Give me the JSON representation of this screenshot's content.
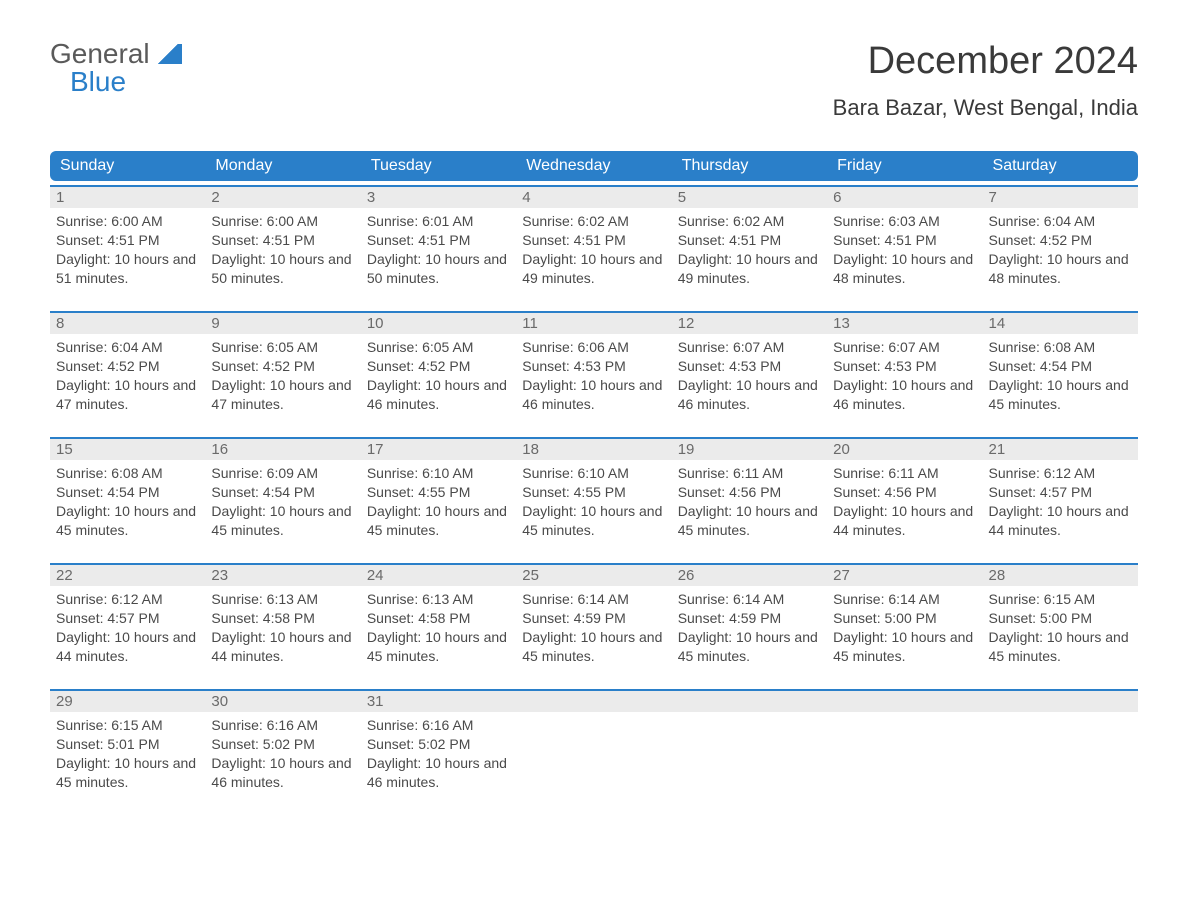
{
  "logo": {
    "top": "General",
    "bottom": "Blue"
  },
  "title": "December 2024",
  "location": "Bara Bazar, West Bengal, India",
  "colors": {
    "brand_blue": "#2a7fc9",
    "header_text": "#ffffff",
    "daynum_bg": "#ebebeb",
    "daynum_text": "#6a6a6a",
    "body_text": "#4a4a4a",
    "title_text": "#3a3a3a",
    "background": "#ffffff"
  },
  "typography": {
    "title_fontsize": 38,
    "location_fontsize": 22,
    "dayheader_fontsize": 16,
    "daynum_fontsize": 15,
    "cell_fontsize": 14,
    "logo_fontsize": 28,
    "font_family": "Arial"
  },
  "layout": {
    "columns": 7,
    "rows": 5,
    "header_radius": 6,
    "week_border_top": "2px solid #2a7fc9"
  },
  "day_headers": [
    "Sunday",
    "Monday",
    "Tuesday",
    "Wednesday",
    "Thursday",
    "Friday",
    "Saturday"
  ],
  "labels": {
    "sunrise": "Sunrise:",
    "sunset": "Sunset:",
    "daylight": "Daylight:"
  },
  "weeks": [
    [
      {
        "num": "1",
        "sunrise": "6:00 AM",
        "sunset": "4:51 PM",
        "daylight": "10 hours and 51 minutes."
      },
      {
        "num": "2",
        "sunrise": "6:00 AM",
        "sunset": "4:51 PM",
        "daylight": "10 hours and 50 minutes."
      },
      {
        "num": "3",
        "sunrise": "6:01 AM",
        "sunset": "4:51 PM",
        "daylight": "10 hours and 50 minutes."
      },
      {
        "num": "4",
        "sunrise": "6:02 AM",
        "sunset": "4:51 PM",
        "daylight": "10 hours and 49 minutes."
      },
      {
        "num": "5",
        "sunrise": "6:02 AM",
        "sunset": "4:51 PM",
        "daylight": "10 hours and 49 minutes."
      },
      {
        "num": "6",
        "sunrise": "6:03 AM",
        "sunset": "4:51 PM",
        "daylight": "10 hours and 48 minutes."
      },
      {
        "num": "7",
        "sunrise": "6:04 AM",
        "sunset": "4:52 PM",
        "daylight": "10 hours and 48 minutes."
      }
    ],
    [
      {
        "num": "8",
        "sunrise": "6:04 AM",
        "sunset": "4:52 PM",
        "daylight": "10 hours and 47 minutes."
      },
      {
        "num": "9",
        "sunrise": "6:05 AM",
        "sunset": "4:52 PM",
        "daylight": "10 hours and 47 minutes."
      },
      {
        "num": "10",
        "sunrise": "6:05 AM",
        "sunset": "4:52 PM",
        "daylight": "10 hours and 46 minutes."
      },
      {
        "num": "11",
        "sunrise": "6:06 AM",
        "sunset": "4:53 PM",
        "daylight": "10 hours and 46 minutes."
      },
      {
        "num": "12",
        "sunrise": "6:07 AM",
        "sunset": "4:53 PM",
        "daylight": "10 hours and 46 minutes."
      },
      {
        "num": "13",
        "sunrise": "6:07 AM",
        "sunset": "4:53 PM",
        "daylight": "10 hours and 46 minutes."
      },
      {
        "num": "14",
        "sunrise": "6:08 AM",
        "sunset": "4:54 PM",
        "daylight": "10 hours and 45 minutes."
      }
    ],
    [
      {
        "num": "15",
        "sunrise": "6:08 AM",
        "sunset": "4:54 PM",
        "daylight": "10 hours and 45 minutes."
      },
      {
        "num": "16",
        "sunrise": "6:09 AM",
        "sunset": "4:54 PM",
        "daylight": "10 hours and 45 minutes."
      },
      {
        "num": "17",
        "sunrise": "6:10 AM",
        "sunset": "4:55 PM",
        "daylight": "10 hours and 45 minutes."
      },
      {
        "num": "18",
        "sunrise": "6:10 AM",
        "sunset": "4:55 PM",
        "daylight": "10 hours and 45 minutes."
      },
      {
        "num": "19",
        "sunrise": "6:11 AM",
        "sunset": "4:56 PM",
        "daylight": "10 hours and 45 minutes."
      },
      {
        "num": "20",
        "sunrise": "6:11 AM",
        "sunset": "4:56 PM",
        "daylight": "10 hours and 44 minutes."
      },
      {
        "num": "21",
        "sunrise": "6:12 AM",
        "sunset": "4:57 PM",
        "daylight": "10 hours and 44 minutes."
      }
    ],
    [
      {
        "num": "22",
        "sunrise": "6:12 AM",
        "sunset": "4:57 PM",
        "daylight": "10 hours and 44 minutes."
      },
      {
        "num": "23",
        "sunrise": "6:13 AM",
        "sunset": "4:58 PM",
        "daylight": "10 hours and 44 minutes."
      },
      {
        "num": "24",
        "sunrise": "6:13 AM",
        "sunset": "4:58 PM",
        "daylight": "10 hours and 45 minutes."
      },
      {
        "num": "25",
        "sunrise": "6:14 AM",
        "sunset": "4:59 PM",
        "daylight": "10 hours and 45 minutes."
      },
      {
        "num": "26",
        "sunrise": "6:14 AM",
        "sunset": "4:59 PM",
        "daylight": "10 hours and 45 minutes."
      },
      {
        "num": "27",
        "sunrise": "6:14 AM",
        "sunset": "5:00 PM",
        "daylight": "10 hours and 45 minutes."
      },
      {
        "num": "28",
        "sunrise": "6:15 AM",
        "sunset": "5:00 PM",
        "daylight": "10 hours and 45 minutes."
      }
    ],
    [
      {
        "num": "29",
        "sunrise": "6:15 AM",
        "sunset": "5:01 PM",
        "daylight": "10 hours and 45 minutes."
      },
      {
        "num": "30",
        "sunrise": "6:16 AM",
        "sunset": "5:02 PM",
        "daylight": "10 hours and 46 minutes."
      },
      {
        "num": "31",
        "sunrise": "6:16 AM",
        "sunset": "5:02 PM",
        "daylight": "10 hours and 46 minutes."
      },
      null,
      null,
      null,
      null
    ]
  ]
}
